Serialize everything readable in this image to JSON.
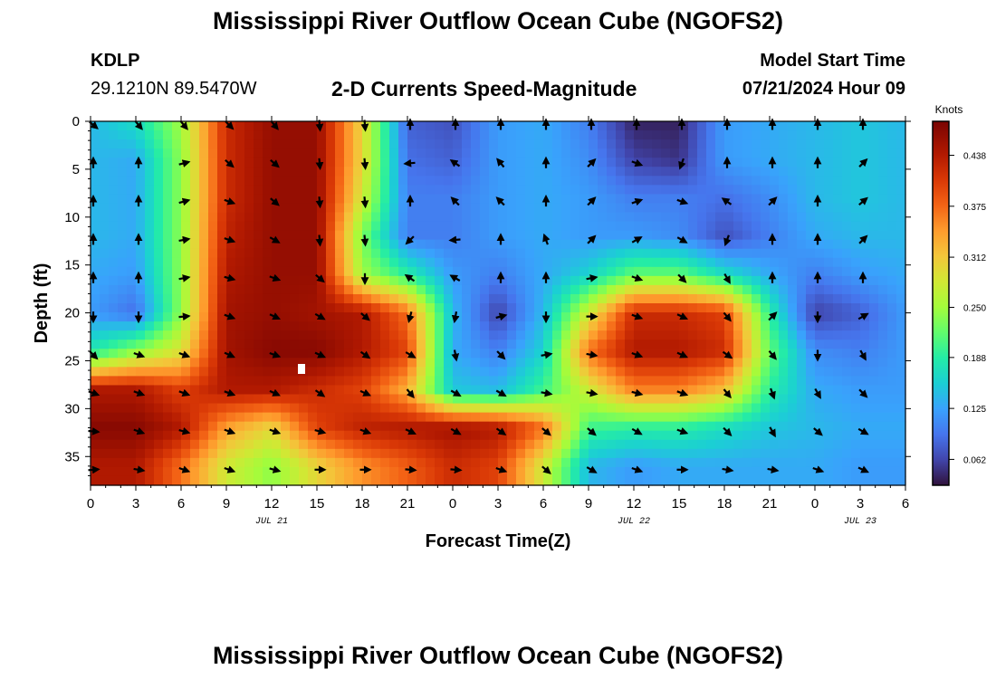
{
  "header": {
    "title": "Mississippi River Outflow Ocean Cube (NGOFS2)",
    "station": "KDLP",
    "coords": "29.1210N  89.5470W",
    "plot_name": "2-D Currents Speed-Magnitude",
    "model_label": "Model Start Time",
    "model_time": "07/21/2024 Hour 09"
  },
  "footer": {
    "title": "Mississippi River Outflow Ocean Cube (NGOFS2)"
  },
  "chart_data": {
    "type": "heatmap",
    "title": "2-D Currents Speed-Magnitude",
    "xlabel": "Forecast Time(Z)",
    "ylabel": "Depth (ft)",
    "x_range_hours": [
      0,
      54
    ],
    "x_tick_labels": [
      "0",
      "3",
      "6",
      "9",
      "12",
      "15",
      "18",
      "21",
      "0",
      "3",
      "6",
      "9",
      "12",
      "15",
      "18",
      "21",
      "0",
      "3",
      "6"
    ],
    "date_labels": [
      {
        "hour": 12,
        "text": "JUL 21"
      },
      {
        "hour": 36,
        "text": "JUL 22"
      },
      {
        "hour": 51,
        "text": "JUL 23"
      }
    ],
    "y_range_ft": [
      0,
      38
    ],
    "y_ticks": [
      0,
      5,
      10,
      15,
      20,
      25,
      30,
      35
    ],
    "colorbar": {
      "label": "Knots",
      "min": 0.03,
      "max": 0.48,
      "ticks": [
        0.062,
        0.125,
        0.188,
        0.25,
        0.312,
        0.375,
        0.438
      ],
      "tick_labels": [
        "0.062",
        "0.125",
        "0.188",
        "0.250",
        "0.312",
        "0.375",
        "0.438"
      ]
    },
    "grid_hours": [
      0,
      3,
      6,
      9,
      12,
      15,
      18,
      21,
      24,
      27,
      30,
      33,
      36,
      39,
      42,
      45,
      48,
      51,
      54
    ],
    "grid_depths_ft": [
      0,
      4,
      8,
      12,
      16,
      20,
      24,
      28,
      32,
      36
    ],
    "speed_knots": [
      [
        0.14,
        0.17,
        0.25,
        0.42,
        0.46,
        0.46,
        0.3,
        0.08,
        0.07,
        0.12,
        0.13,
        0.1,
        0.04,
        0.04,
        0.12,
        0.13,
        0.14,
        0.15,
        0.14
      ],
      [
        0.14,
        0.13,
        0.24,
        0.42,
        0.46,
        0.46,
        0.3,
        0.09,
        0.08,
        0.12,
        0.13,
        0.11,
        0.06,
        0.05,
        0.12,
        0.13,
        0.14,
        0.15,
        0.14
      ],
      [
        0.14,
        0.13,
        0.24,
        0.42,
        0.46,
        0.46,
        0.28,
        0.1,
        0.1,
        0.12,
        0.13,
        0.12,
        0.1,
        0.1,
        0.09,
        0.11,
        0.14,
        0.15,
        0.14
      ],
      [
        0.14,
        0.13,
        0.24,
        0.43,
        0.46,
        0.46,
        0.23,
        0.1,
        0.1,
        0.12,
        0.13,
        0.12,
        0.12,
        0.11,
        0.07,
        0.1,
        0.13,
        0.14,
        0.14
      ],
      [
        0.13,
        0.12,
        0.24,
        0.44,
        0.46,
        0.46,
        0.25,
        0.19,
        0.12,
        0.1,
        0.13,
        0.16,
        0.22,
        0.22,
        0.17,
        0.13,
        0.1,
        0.12,
        0.13
      ],
      [
        0.12,
        0.09,
        0.24,
        0.45,
        0.46,
        0.45,
        0.44,
        0.37,
        0.14,
        0.06,
        0.14,
        0.28,
        0.42,
        0.42,
        0.4,
        0.19,
        0.06,
        0.08,
        0.12
      ],
      [
        0.18,
        0.24,
        0.29,
        0.45,
        0.47,
        0.47,
        0.44,
        0.4,
        0.13,
        0.1,
        0.16,
        0.37,
        0.44,
        0.44,
        0.42,
        0.22,
        0.11,
        0.1,
        0.12
      ],
      [
        0.44,
        0.44,
        0.4,
        0.44,
        0.44,
        0.42,
        0.4,
        0.33,
        0.15,
        0.14,
        0.2,
        0.28,
        0.36,
        0.36,
        0.32,
        0.19,
        0.13,
        0.12,
        0.12
      ],
      [
        0.47,
        0.47,
        0.44,
        0.34,
        0.3,
        0.4,
        0.43,
        0.44,
        0.45,
        0.44,
        0.37,
        0.2,
        0.19,
        0.19,
        0.17,
        0.15,
        0.14,
        0.13,
        0.13
      ],
      [
        0.44,
        0.44,
        0.37,
        0.28,
        0.24,
        0.3,
        0.35,
        0.38,
        0.42,
        0.4,
        0.28,
        0.14,
        0.12,
        0.13,
        0.13,
        0.13,
        0.13,
        0.12,
        0.12
      ]
    ],
    "vector_hours": [
      0,
      3,
      6,
      9,
      12,
      15,
      18,
      21,
      24,
      27,
      30,
      33,
      36,
      39,
      42,
      45,
      48,
      51
    ],
    "vector_depths_ft": [
      0,
      4,
      8,
      12,
      16,
      20,
      24,
      28,
      32,
      36
    ],
    "vector_direction_deg": [
      [
        130,
        140,
        140,
        135,
        140,
        175,
        175,
        0,
        0,
        0,
        0,
        0,
        0,
        0,
        0,
        0,
        0,
        0
      ],
      [
        0,
        0,
        75,
        130,
        130,
        175,
        175,
        265,
        305,
        320,
        0,
        45,
        110,
        200,
        0,
        0,
        0,
        45
      ],
      [
        0,
        0,
        75,
        110,
        130,
        175,
        175,
        0,
        315,
        315,
        0,
        45,
        70,
        110,
        305,
        45,
        0,
        50
      ],
      [
        0,
        0,
        80,
        110,
        120,
        175,
        175,
        225,
        265,
        0,
        340,
        45,
        60,
        120,
        200,
        0,
        0,
        45
      ],
      [
        0,
        0,
        80,
        105,
        110,
        130,
        180,
        305,
        300,
        0,
        0,
        80,
        110,
        135,
        150,
        0,
        0,
        0
      ],
      [
        180,
        180,
        85,
        110,
        115,
        120,
        130,
        195,
        190,
        75,
        180,
        90,
        110,
        115,
        140,
        45,
        180,
        60
      ],
      [
        135,
        110,
        110,
        115,
        110,
        115,
        125,
        120,
        170,
        135,
        80,
        100,
        110,
        115,
        125,
        140,
        180,
        150
      ],
      [
        110,
        110,
        110,
        110,
        115,
        125,
        115,
        140,
        120,
        120,
        100,
        100,
        105,
        110,
        140,
        160,
        150,
        135
      ],
      [
        95,
        110,
        105,
        110,
        110,
        105,
        110,
        115,
        120,
        125,
        130,
        130,
        120,
        110,
        135,
        150,
        130,
        120
      ],
      [
        85,
        100,
        110,
        110,
        105,
        90,
        90,
        95,
        95,
        110,
        130,
        120,
        110,
        90,
        100,
        100,
        110,
        115
      ]
    ]
  }
}
